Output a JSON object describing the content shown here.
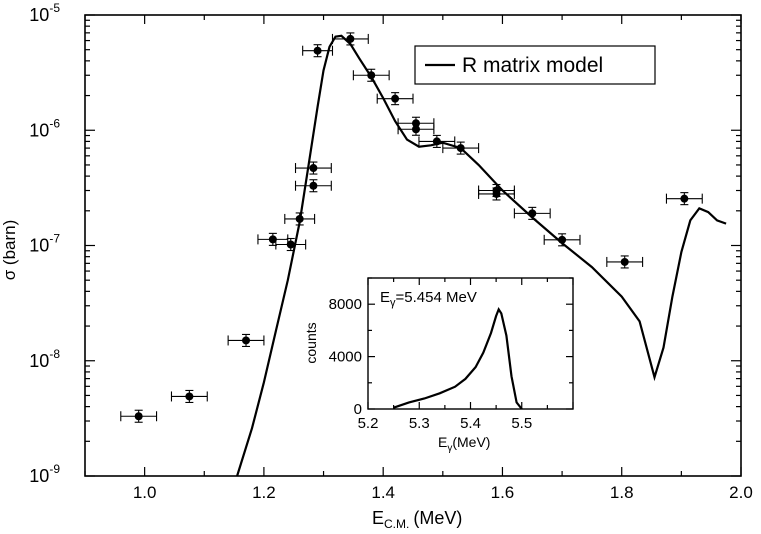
{
  "chart_data": [
    {
      "type": "scatter",
      "xlabel_main": "E",
      "xlabel_sub": "C.M.",
      "xlabel_unit": "(MeV)",
      "ylabel": "σ (barn)",
      "xlim": [
        0.9,
        2.0
      ],
      "ylim_log10": [
        -9,
        -5
      ],
      "x_ticks": [
        "1.0",
        "1.2",
        "1.4",
        "1.6",
        "1.8",
        "2.0"
      ],
      "x_tick_values": [
        1.0,
        1.2,
        1.4,
        1.6,
        1.8,
        2.0
      ],
      "y_ticks": [
        {
          "base": "10",
          "exp": "-9",
          "value": -9
        },
        {
          "base": "10",
          "exp": "-8",
          "value": -8
        },
        {
          "base": "10",
          "exp": "-7",
          "value": -7
        },
        {
          "base": "10",
          "exp": "-6",
          "value": -6
        },
        {
          "base": "10",
          "exp": "-5",
          "value": -5
        }
      ],
      "legend": {
        "label": "R matrix model",
        "position": "top-right"
      },
      "series": [
        {
          "name": "data",
          "points": [
            {
              "x": 0.99,
              "y": 3.3e-09,
              "xerr": 0.03
            },
            {
              "x": 1.075,
              "y": 4.9e-09,
              "xerr": 0.03
            },
            {
              "x": 1.17,
              "y": 1.5e-08,
              "xerr": 0.03
            },
            {
              "x": 1.215,
              "y": 1.13e-07,
              "xerr": 0.025
            },
            {
              "x": 1.245,
              "y": 1.02e-07,
              "xerr": 0.025
            },
            {
              "x": 1.26,
              "y": 1.7e-07,
              "xerr": 0.025
            },
            {
              "x": 1.283,
              "y": 4.7e-07,
              "xerr": 0.03
            },
            {
              "x": 1.283,
              "y": 3.3e-07,
              "xerr": 0.03
            },
            {
              "x": 1.29,
              "y": 4.9e-06,
              "xerr": 0.025
            },
            {
              "x": 1.345,
              "y": 6.2e-06,
              "xerr": 0.03
            },
            {
              "x": 1.38,
              "y": 3e-06,
              "xerr": 0.03
            },
            {
              "x": 1.42,
              "y": 1.88e-06,
              "xerr": 0.03
            },
            {
              "x": 1.455,
              "y": 1.15e-06,
              "xerr": 0.03
            },
            {
              "x": 1.455,
              "y": 1.02e-06,
              "xerr": 0.03
            },
            {
              "x": 1.49,
              "y": 8e-07,
              "xerr": 0.03
            },
            {
              "x": 1.53,
              "y": 7e-07,
              "xerr": 0.03
            },
            {
              "x": 1.59,
              "y": 3e-07,
              "xerr": 0.03
            },
            {
              "x": 1.59,
              "y": 2.8e-07,
              "xerr": 0.03
            },
            {
              "x": 1.65,
              "y": 1.9e-07,
              "xerr": 0.03
            },
            {
              "x": 1.7,
              "y": 1.12e-07,
              "xerr": 0.03
            },
            {
              "x": 1.805,
              "y": 7.2e-08,
              "xerr": 0.03
            },
            {
              "x": 1.905,
              "y": 2.55e-07,
              "xerr": 0.03
            }
          ]
        },
        {
          "name": "R matrix model",
          "points": [
            [
              1.155,
              1e-09
            ],
            [
              1.18,
              2.6e-09
            ],
            [
              1.2,
              6.5e-09
            ],
            [
              1.22,
              1.8e-08
            ],
            [
              1.24,
              5e-08
            ],
            [
              1.26,
              1.6e-07
            ],
            [
              1.275,
              5e-07
            ],
            [
              1.29,
              1.6e-06
            ],
            [
              1.3,
              3.3e-06
            ],
            [
              1.31,
              5.3e-06
            ],
            [
              1.32,
              6.5e-06
            ],
            [
              1.33,
              6.6e-06
            ],
            [
              1.345,
              5.6e-06
            ],
            [
              1.36,
              4.2e-06
            ],
            [
              1.38,
              2.9e-06
            ],
            [
              1.4,
              1.9e-06
            ],
            [
              1.42,
              1.2e-06
            ],
            [
              1.44,
              8.3e-07
            ],
            [
              1.46,
              7.2e-07
            ],
            [
              1.48,
              7.4e-07
            ],
            [
              1.5,
              7.8e-07
            ],
            [
              1.53,
              7e-07
            ],
            [
              1.56,
              5e-07
            ],
            [
              1.6,
              3e-07
            ],
            [
              1.65,
              1.75e-07
            ],
            [
              1.7,
              1.05e-07
            ],
            [
              1.75,
              6.5e-08
            ],
            [
              1.8,
              3.6e-08
            ],
            [
              1.83,
              2.2e-08
            ],
            [
              1.855,
              7.2e-09
            ],
            [
              1.87,
              1.3e-08
            ],
            [
              1.885,
              3.6e-08
            ],
            [
              1.9,
              8.8e-08
            ],
            [
              1.915,
              1.65e-07
            ],
            [
              1.93,
              2.1e-07
            ],
            [
              1.945,
              1.95e-07
            ],
            [
              1.96,
              1.65e-07
            ],
            [
              1.975,
              1.55e-07
            ]
          ]
        }
      ]
    },
    {
      "type": "line",
      "xlabel_main": "E",
      "xlabel_sub": "γ",
      "xlabel_unit": "(MeV)",
      "ylabel": "counts",
      "xlim": [
        5.2,
        5.6
      ],
      "ylim": [
        0,
        10000
      ],
      "x_ticks": [
        "5.2",
        "5.3",
        "5.4",
        "5.5"
      ],
      "x_tick_values": [
        5.2,
        5.3,
        5.4,
        5.5
      ],
      "y_ticks": [
        "0",
        "4000",
        "8000"
      ],
      "y_tick_values": [
        0,
        4000,
        8000
      ],
      "annotation": {
        "main": "E",
        "sub": "γ",
        "text": "=5.454 MeV"
      },
      "series": [
        {
          "name": "spectrum",
          "points": [
            [
              5.25,
              100
            ],
            [
              5.28,
              500
            ],
            [
              5.31,
              800
            ],
            [
              5.34,
              1200
            ],
            [
              5.37,
              1700
            ],
            [
              5.39,
              2300
            ],
            [
              5.41,
              3200
            ],
            [
              5.425,
              4300
            ],
            [
              5.44,
              5800
            ],
            [
              5.45,
              7100
            ],
            [
              5.455,
              7600
            ],
            [
              5.46,
              7300
            ],
            [
              5.47,
              5600
            ],
            [
              5.48,
              2500
            ],
            [
              5.49,
              500
            ],
            [
              5.5,
              0
            ]
          ]
        }
      ]
    }
  ]
}
